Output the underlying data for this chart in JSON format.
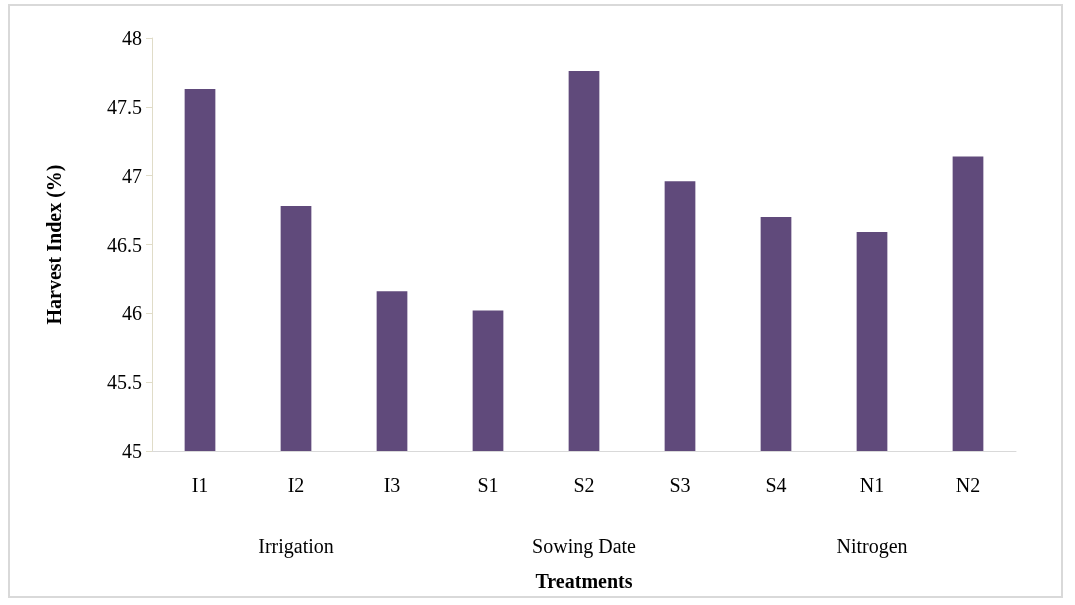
{
  "chart_data": {
    "type": "bar",
    "xlabel": "Treatments",
    "ylabel": "Harvest Index (%)",
    "categories": [
      "I1",
      "I2",
      "I3",
      "S1",
      "S2",
      "S3",
      "S4",
      "N1",
      "N2"
    ],
    "values": [
      47.63,
      46.78,
      46.16,
      46.02,
      47.76,
      46.96,
      46.7,
      46.59,
      47.14
    ],
    "color": "#604a7b",
    "ylim": [
      45,
      48
    ],
    "yticks": [
      45,
      45.5,
      46,
      46.5,
      47,
      47.5,
      48
    ],
    "grid": false,
    "annotations": [
      "Irrigation",
      "Sowing Date",
      "Nitrogen"
    ]
  }
}
